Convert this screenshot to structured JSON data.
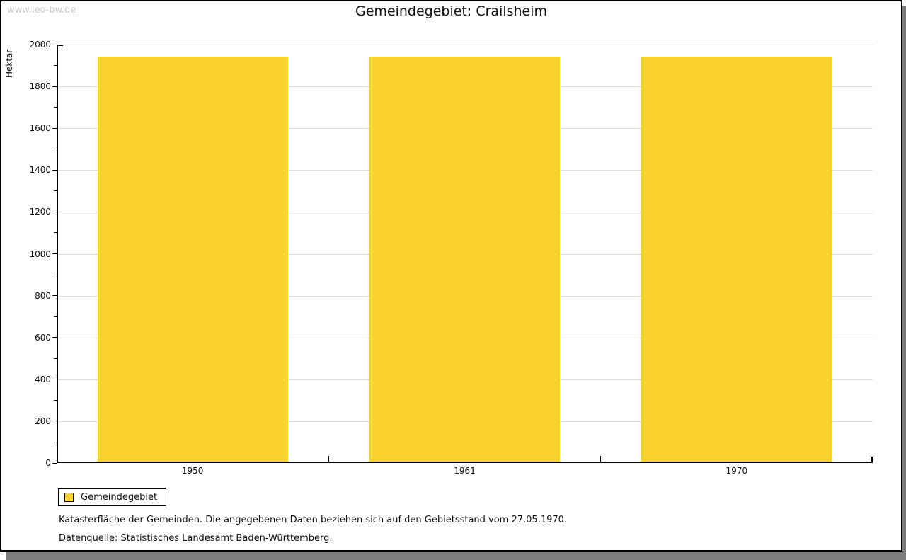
{
  "watermark": "www.leo-bw.de",
  "title": "Gemeindegebiet: Crailsheim",
  "legend": {
    "label": "Gemeindegebiet",
    "position": "bottom-left"
  },
  "footnotes": {
    "line1": "Katasterfläche der Gemeinden. Die angegebenen Daten beziehen sich auf den Gebietsstand vom 27.05.1970.",
    "line2": "Datenquelle: Statistisches Landesamt Baden-Württemberg."
  },
  "chart_data": {
    "type": "bar",
    "title": "Gemeindegebiet: Crailsheim",
    "categories": [
      "1950",
      "1961",
      "1970"
    ],
    "series": [
      {
        "name": "Gemeindegebiet",
        "values": [
          1942,
          1942,
          1942
        ]
      }
    ],
    "xlabel": "",
    "ylabel": "Hektar",
    "ylim": [
      0,
      2000
    ],
    "ytick_major": 200,
    "ytick_minor": 100,
    "grid": "horizontal-major",
    "legend_position": "bottom-left",
    "bar_color": "#FCD32E",
    "grid_color": "#dcdcdc",
    "axis_color": "#000000"
  }
}
